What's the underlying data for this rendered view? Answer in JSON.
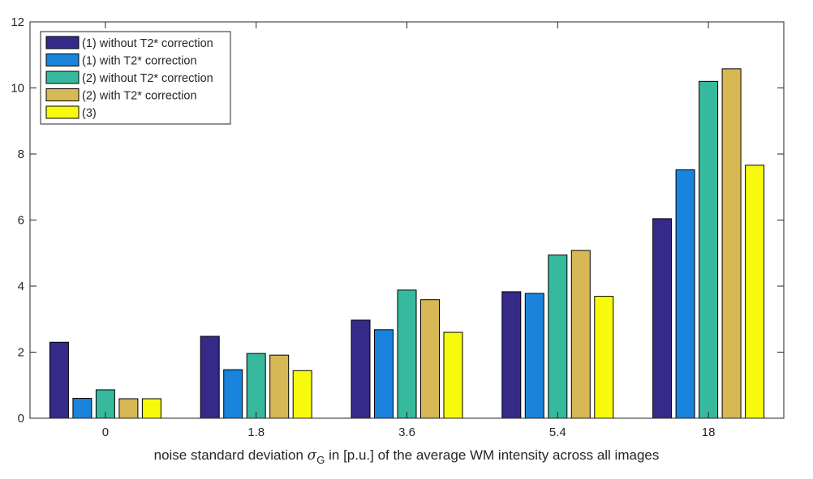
{
  "chart_data": {
    "type": "bar",
    "title": "",
    "xlabel": "noise standard deviation",
    "xlabel_symbol": "σ",
    "xlabel_subscript": "G",
    "xlabel_rest": " in [p.u.] of the average WM intensity across all images",
    "ylabel": "",
    "ylim": [
      0,
      12
    ],
    "yticks": [
      0,
      2,
      4,
      6,
      8,
      10,
      12
    ],
    "grid": false,
    "legend_position": "top-left",
    "categories": [
      "0",
      "1.8",
      "3.6",
      "5.4",
      "18"
    ],
    "series": [
      {
        "name": "(1) without T2* correction",
        "color": "#352a87",
        "values": [
          2.3,
          2.48,
          2.97,
          3.83,
          6.04
        ]
      },
      {
        "name": "(1) with T2* correction",
        "color": "#1a83db",
        "values": [
          0.6,
          1.47,
          2.68,
          3.78,
          7.52
        ]
      },
      {
        "name": "(2) without T2* correction",
        "color": "#36b99c",
        "values": [
          0.86,
          1.96,
          3.88,
          4.94,
          10.2
        ]
      },
      {
        "name": "(2) with T2* correction",
        "color": "#d6b854",
        "values": [
          0.59,
          1.91,
          3.59,
          5.08,
          10.58
        ]
      },
      {
        "name": "(3)",
        "color": "#f8fa0d",
        "values": [
          0.59,
          1.44,
          2.6,
          3.69,
          7.66
        ]
      }
    ]
  }
}
